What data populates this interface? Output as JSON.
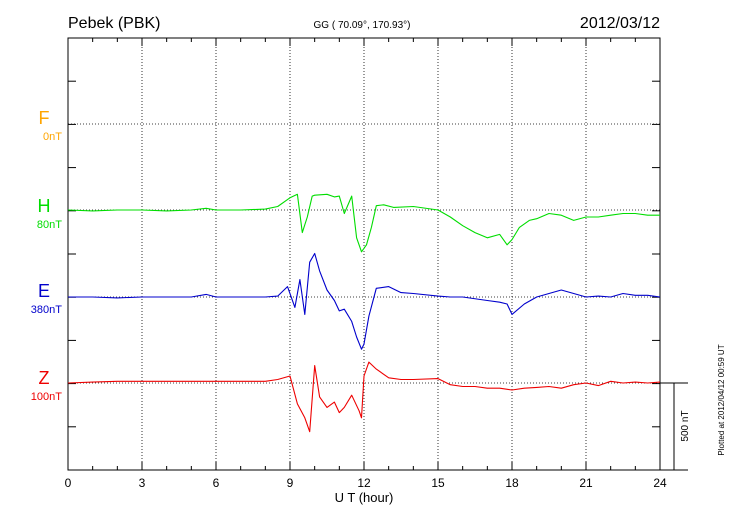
{
  "header": {
    "station": "Pebek (PBK)",
    "coords": "GG ( 70.09°, 170.93°)",
    "date": "2012/03/12"
  },
  "footer_note": "Plotted at 2012/04/12 00:59 UT",
  "scale_bar_label": "500 nT",
  "chart_data": {
    "type": "line",
    "xlabel": "U T (hour)",
    "xlim": [
      0,
      24
    ],
    "xticks": [
      "0",
      "3",
      "6",
      "9",
      "12",
      "15",
      "18",
      "21",
      "24"
    ],
    "ylabel": "",
    "grid": true,
    "units": "nT",
    "series": [
      {
        "name": "F",
        "offset_label": "0nT",
        "color": "#ffa500",
        "x": [],
        "y": []
      },
      {
        "name": "H",
        "offset_label": "80nT",
        "color": "#00dd00",
        "x": [
          0,
          1,
          2,
          3,
          4,
          5,
          5.6,
          6,
          7,
          8,
          8.5,
          8.9,
          9,
          9.3,
          9.5,
          9.7,
          9.9,
          10,
          10.5,
          10.8,
          11,
          11.2,
          11.5,
          11.7,
          11.9,
          12.1,
          12.3,
          12.5,
          12.8,
          13.2,
          14,
          15,
          15.5,
          16,
          16.5,
          17,
          17.5,
          17.8,
          18,
          18.3,
          18.7,
          19,
          19.5,
          20,
          20.5,
          21,
          21.5,
          22,
          22.5,
          23,
          23.5,
          24
        ],
        "y": [
          0,
          -5,
          0,
          0,
          -5,
          0,
          10,
          0,
          0,
          5,
          20,
          60,
          70,
          90,
          -130,
          -40,
          80,
          85,
          90,
          75,
          80,
          -20,
          80,
          -160,
          -240,
          -200,
          -100,
          25,
          30,
          15,
          20,
          0,
          -40,
          -90,
          -130,
          -160,
          -140,
          -200,
          -170,
          -100,
          -60,
          -50,
          -20,
          -30,
          -60,
          -40,
          -40,
          -30,
          -20,
          -20,
          -30,
          -30
        ]
      },
      {
        "name": "E",
        "offset_label": "380nT",
        "color": "#0000cc",
        "x": [
          0,
          1,
          2,
          3,
          4,
          5,
          5.6,
          6,
          7,
          8,
          8.5,
          8.9,
          9.2,
          9.4,
          9.6,
          9.8,
          10,
          10.2,
          10.5,
          10.8,
          11,
          11.2,
          11.5,
          11.7,
          11.9,
          12,
          12.2,
          12.5,
          13,
          13.5,
          14,
          15,
          15.5,
          16,
          17,
          17.5,
          17.8,
          18,
          18.5,
          19,
          19.5,
          20,
          20.5,
          21,
          21.5,
          22,
          22.5,
          23,
          23.5,
          24
        ],
        "y": [
          0,
          0,
          -5,
          0,
          0,
          0,
          15,
          0,
          0,
          0,
          5,
          60,
          -60,
          100,
          -100,
          200,
          250,
          150,
          40,
          -20,
          -80,
          -70,
          -140,
          -230,
          -300,
          -270,
          -110,
          50,
          60,
          25,
          20,
          5,
          0,
          0,
          -20,
          -30,
          -40,
          -100,
          -40,
          0,
          20,
          40,
          20,
          0,
          5,
          0,
          20,
          10,
          10,
          0
        ]
      },
      {
        "name": "Z",
        "offset_label": "100nT",
        "color": "#ee0000",
        "x": [
          0,
          1,
          2,
          3,
          4,
          5,
          6,
          7,
          8,
          8.5,
          9,
          9.3,
          9.6,
          9.8,
          10,
          10.2,
          10.5,
          10.8,
          11,
          11.2,
          11.5,
          11.8,
          11.9,
          12,
          12.2,
          12.5,
          13,
          13.5,
          14,
          15,
          15.5,
          16,
          16.5,
          17,
          17.5,
          18,
          18.5,
          19,
          19.5,
          20,
          20.5,
          21,
          21.5,
          22,
          22.5,
          23,
          23.5,
          24
        ],
        "y": [
          0,
          5,
          10,
          10,
          10,
          10,
          10,
          10,
          10,
          20,
          40,
          -120,
          -200,
          -280,
          100,
          -80,
          -140,
          -110,
          -170,
          -140,
          -70,
          -160,
          -200,
          40,
          120,
          80,
          30,
          20,
          20,
          25,
          -10,
          -20,
          -20,
          -30,
          -30,
          -40,
          -30,
          -25,
          -20,
          -30,
          -10,
          0,
          -15,
          10,
          0,
          5,
          0,
          5
        ]
      }
    ],
    "scale_bar_nT": 500
  }
}
